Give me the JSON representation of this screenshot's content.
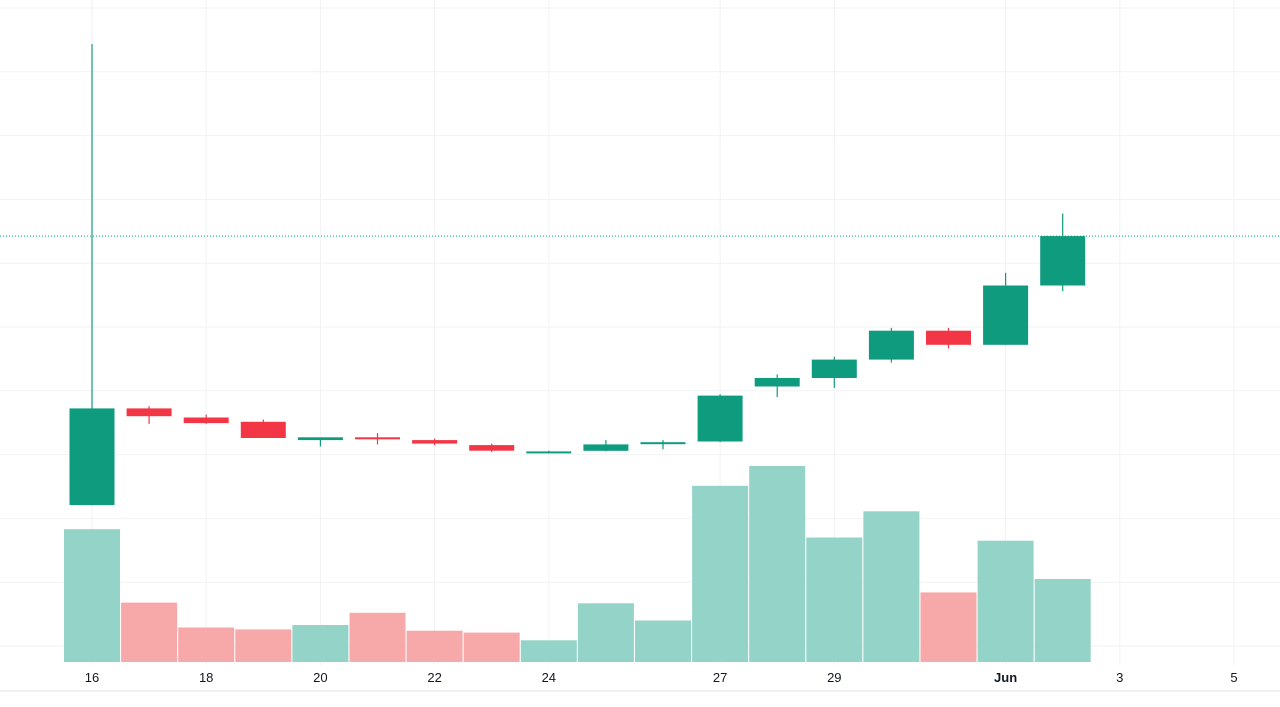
{
  "chart_data": {
    "type": "candlestick",
    "x_tick_labels": [
      {
        "label": "16",
        "date": "May 16",
        "bold": false
      },
      {
        "label": "18",
        "date": "May 18",
        "bold": false
      },
      {
        "label": "20",
        "date": "May 20",
        "bold": false
      },
      {
        "label": "22",
        "date": "May 22",
        "bold": false
      },
      {
        "label": "24",
        "date": "May 24",
        "bold": false
      },
      {
        "label": "27",
        "date": "May 27",
        "bold": false
      },
      {
        "label": "29",
        "date": "May 29",
        "bold": false
      },
      {
        "label": "Jun",
        "date": "Jun 1",
        "bold": true
      },
      {
        "label": "3",
        "date": "Jun 3",
        "bold": false
      },
      {
        "label": "5",
        "date": "Jun 5",
        "bold": false
      }
    ],
    "candles": [
      {
        "date": "May 16",
        "open": 30.7,
        "high": 96.0,
        "low": 30.7,
        "close": 44.4
      },
      {
        "date": "May 17",
        "open": 44.4,
        "high": 44.7,
        "low": 42.2,
        "close": 43.3
      },
      {
        "date": "May 18",
        "open": 43.1,
        "high": 43.5,
        "low": 42.2,
        "close": 42.3
      },
      {
        "date": "May 19",
        "open": 42.5,
        "high": 42.8,
        "low": 40.2,
        "close": 40.2
      },
      {
        "date": "May 20",
        "open": 39.9,
        "high": 40.2,
        "low": 39.0,
        "close": 40.3
      },
      {
        "date": "May 21",
        "open": 40.3,
        "high": 40.9,
        "low": 39.3,
        "close": 40.2
      },
      {
        "date": "May 22",
        "open": 39.9,
        "high": 40.1,
        "low": 39.2,
        "close": 39.4
      },
      {
        "date": "May 23",
        "open": 39.2,
        "high": 39.4,
        "low": 38.2,
        "close": 38.4
      },
      {
        "date": "May 24",
        "open": 38.3,
        "high": 38.4,
        "low": 38.0,
        "close": 38.3
      },
      {
        "date": "May 25",
        "open": 38.4,
        "high": 39.9,
        "low": 38.3,
        "close": 39.3
      },
      {
        "date": "May 26",
        "open": 39.5,
        "high": 39.9,
        "low": 38.6,
        "close": 39.6
      },
      {
        "date": "May 27",
        "open": 39.7,
        "high": 46.4,
        "low": 39.6,
        "close": 46.2
      },
      {
        "date": "May 28",
        "open": 47.5,
        "high": 49.2,
        "low": 46.0,
        "close": 48.7
      },
      {
        "date": "May 29",
        "open": 48.7,
        "high": 51.7,
        "low": 47.3,
        "close": 51.3
      },
      {
        "date": "May 30",
        "open": 51.3,
        "high": 55.8,
        "low": 50.9,
        "close": 55.4
      },
      {
        "date": "May 31",
        "open": 55.4,
        "high": 55.8,
        "low": 52.9,
        "close": 53.4
      },
      {
        "date": "Jun 1",
        "open": 53.4,
        "high": 63.6,
        "low": 53.4,
        "close": 61.8
      },
      {
        "date": "Jun 2",
        "open": 61.8,
        "high": 72.0,
        "low": 61.0,
        "close": 68.8
      }
    ],
    "volumes": [
      {
        "date": "May 16",
        "value": 20.8
      },
      {
        "date": "May 17",
        "value": 9.3
      },
      {
        "date": "May 18",
        "value": 5.4
      },
      {
        "date": "May 19",
        "value": 5.1
      },
      {
        "date": "May 20",
        "value": 5.8
      },
      {
        "date": "May 21",
        "value": 7.7
      },
      {
        "date": "May 22",
        "value": 4.9
      },
      {
        "date": "May 23",
        "value": 4.6
      },
      {
        "date": "May 24",
        "value": 3.4
      },
      {
        "date": "May 25",
        "value": 9.2
      },
      {
        "date": "May 26",
        "value": 6.5
      },
      {
        "date": "May 27",
        "value": 27.6
      },
      {
        "date": "May 28",
        "value": 30.7
      },
      {
        "date": "May 29",
        "value": 19.5
      },
      {
        "date": "May 30",
        "value": 23.6
      },
      {
        "date": "May 31",
        "value": 10.9
      },
      {
        "date": "Jun 1",
        "value": 19.0
      },
      {
        "date": "Jun 2",
        "value": 13.0
      }
    ],
    "last_price": 68.8,
    "grid": true,
    "colors": {
      "up": "#0e9b7e",
      "down": "#f23645",
      "volume_up": "#93d3c8",
      "volume_down": "#f7a9a9",
      "grid": "#f0f2f4",
      "axis_text": "#131722",
      "price_line": "#0e9b7e"
    }
  }
}
